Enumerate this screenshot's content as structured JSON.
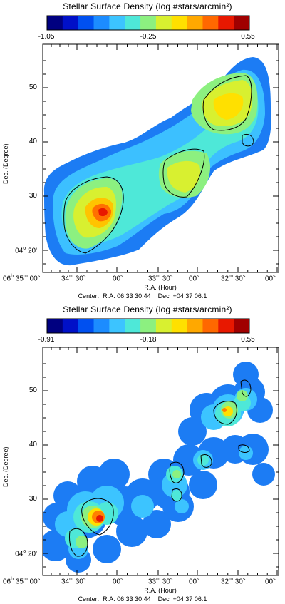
{
  "chart_data": [
    {
      "type": "heatmap",
      "title": "Stellar Surface Density (log #stars/arcmin²)",
      "colorbar": {
        "ticks": [
          "-1.05",
          "-0.25",
          "0.55"
        ],
        "min": -1.05,
        "max": 0.55
      },
      "xlabel": "R.A. (Hour)",
      "ylabel": "Dec. (Degree)",
      "x_ticks": [
        {
          "h": "06",
          "hu": "h",
          "m": "35",
          "mu": "m",
          "s": "00",
          "su": "s"
        },
        {
          "m": "34",
          "mu": "m",
          "s": "30",
          "su": "s"
        },
        {
          "s": "00",
          "su": "s"
        },
        {
          "m": "33",
          "mu": "m",
          "s": "30",
          "su": "s"
        },
        {
          "s": "00",
          "su": "s"
        },
        {
          "m": "32",
          "mu": "m",
          "s": "30",
          "su": "s"
        },
        {
          "s": "00",
          "su": "s"
        }
      ],
      "y_ticks": [
        {
          "deg": "",
          "min": "50"
        },
        {
          "deg": "",
          "min": "40"
        },
        {
          "deg": "",
          "min": "30"
        },
        {
          "deg": "04",
          "degu": "o",
          "min": "20'"
        }
      ],
      "center": "Center:  R.A. 06 33 30.44    Dec  +04 37 06.1",
      "grid": false
    },
    {
      "type": "heatmap",
      "title": "Stellar Surface Density (log #stars/arcmin²)",
      "colorbar": {
        "ticks": [
          "-0.91",
          "-0.18",
          "0.55"
        ],
        "min": -0.91,
        "max": 0.55
      },
      "xlabel": "R.A. (Hour)",
      "ylabel": "Dec. (Degree)",
      "x_ticks": [
        {
          "h": "06",
          "hu": "h",
          "m": "35",
          "mu": "m",
          "s": "00",
          "su": "s"
        },
        {
          "m": "34",
          "mu": "m",
          "s": "30",
          "su": "s"
        },
        {
          "s": "00",
          "su": "s"
        },
        {
          "m": "33",
          "mu": "m",
          "s": "30",
          "su": "s"
        },
        {
          "s": "00",
          "su": "s"
        },
        {
          "m": "32",
          "mu": "m",
          "s": "30",
          "su": "s"
        },
        {
          "s": "00",
          "su": "s"
        }
      ],
      "y_ticks": [
        {
          "deg": "",
          "min": "50"
        },
        {
          "deg": "",
          "min": "40"
        },
        {
          "deg": "",
          "min": "30"
        },
        {
          "deg": "04",
          "degu": "o",
          "min": "20'"
        }
      ],
      "center": "Center:  R.A. 06 33 30.44    Dec  +04 37 06.1",
      "grid": false
    }
  ],
  "colors": [
    "#000080",
    "#0010c8",
    "#0050f0",
    "#1c8cff",
    "#3cc4ff",
    "#4ee8d8",
    "#8cf080",
    "#d8f030",
    "#ffe000",
    "#ffa800",
    "#ff6800",
    "#e81800",
    "#a00000"
  ]
}
